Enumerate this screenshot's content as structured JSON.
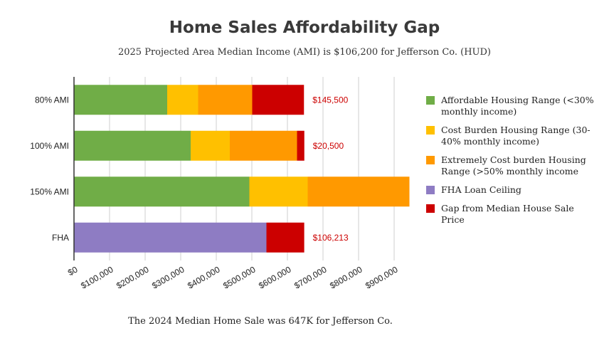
{
  "chart_data": {
    "type": "bar",
    "orientation": "horizontal",
    "stacked": true,
    "title": "Home Sales Affordability Gap",
    "subtitle": "2025 Projected Area Median Income (AMI) is $106,200 for Jefferson Co. (HUD)",
    "xlabel": "The 2024 Median Home Sale was 647K for Jefferson Co.",
    "ylabel": "",
    "xlim": [
      0,
      900000
    ],
    "xticks": [
      0,
      100000,
      200000,
      300000,
      400000,
      500000,
      600000,
      700000,
      800000,
      900000
    ],
    "xtick_labels": [
      "$0",
      "$100,000",
      "$200,000",
      "$300,000",
      "$400,000",
      "$500,000",
      "$600,000",
      "$700,000",
      "$800,000",
      "$900,000"
    ],
    "grid": true,
    "legend_position": "right",
    "categories": [
      "80% AMI",
      "100% AMI",
      "150% AMI",
      "FHA"
    ],
    "series": [
      {
        "name": "Affordable Housing Range (<30% monthly income)",
        "color": "#70ad47",
        "values": [
          262000,
          328000,
          493000,
          0
        ]
      },
      {
        "name": "Cost Burden Housing Range (30-40% monthly income)",
        "color": "#ffc000",
        "values": [
          87000,
          110000,
          164000,
          0
        ]
      },
      {
        "name": "Extremely Cost burden Housing Range (>50% monthly income",
        "color": "#ff9900",
        "values": [
          152000,
          189000,
          286000,
          0
        ]
      },
      {
        "name": "FHA Loan Ceiling",
        "color": "#8e7cc3",
        "values": [
          0,
          0,
          0,
          541000
        ]
      },
      {
        "name": "Gap from Median House Sale Price",
        "color": "#cc0000",
        "values": [
          145500,
          20500,
          0,
          106213
        ]
      }
    ],
    "data_labels": [
      "$145,500",
      "$20,500",
      "",
      "$106,213"
    ],
    "data_label_color": "#cc0000"
  }
}
